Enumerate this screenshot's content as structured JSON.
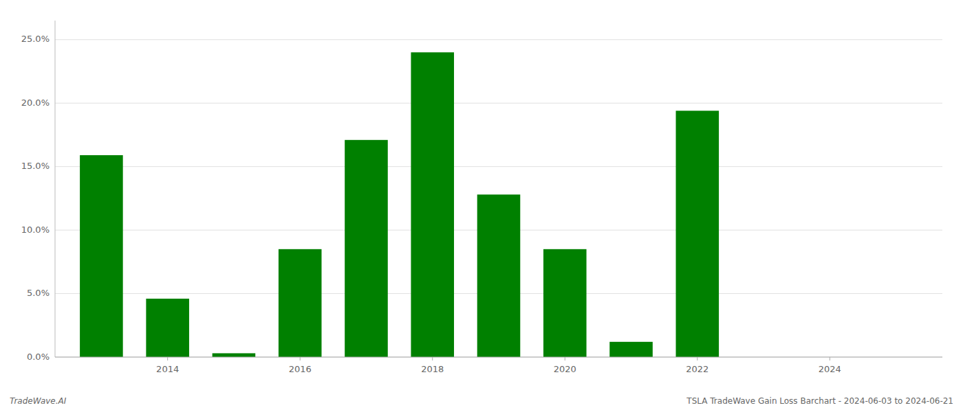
{
  "chart_data": {
    "type": "bar",
    "x": [
      2013,
      2014,
      2015,
      2016,
      2017,
      2018,
      2019,
      2020,
      2021,
      2022,
      2023
    ],
    "values": [
      0.159,
      0.046,
      0.003,
      0.085,
      0.171,
      0.24,
      0.128,
      0.085,
      0.012,
      0.194,
      0.0
    ],
    "color": "#008000",
    "xlim": [
      2012.3,
      2025.7
    ],
    "xticks": [
      2014,
      2016,
      2018,
      2020,
      2022,
      2024
    ],
    "ylim": [
      0,
      0.265
    ],
    "yticks": [
      {
        "value": 0.0,
        "label": "0.0%"
      },
      {
        "value": 0.05,
        "label": "5.0%"
      },
      {
        "value": 0.1,
        "label": "10.0%"
      },
      {
        "value": 0.15,
        "label": "15.0%"
      },
      {
        "value": 0.2,
        "label": "20.0%"
      },
      {
        "value": 0.25,
        "label": "25.0%"
      }
    ],
    "grid": true,
    "annotations": [
      "TradeWave.AI",
      "TSLA TradeWave Gain Loss Barchart - 2024-06-03 to 2024-06-21"
    ]
  }
}
